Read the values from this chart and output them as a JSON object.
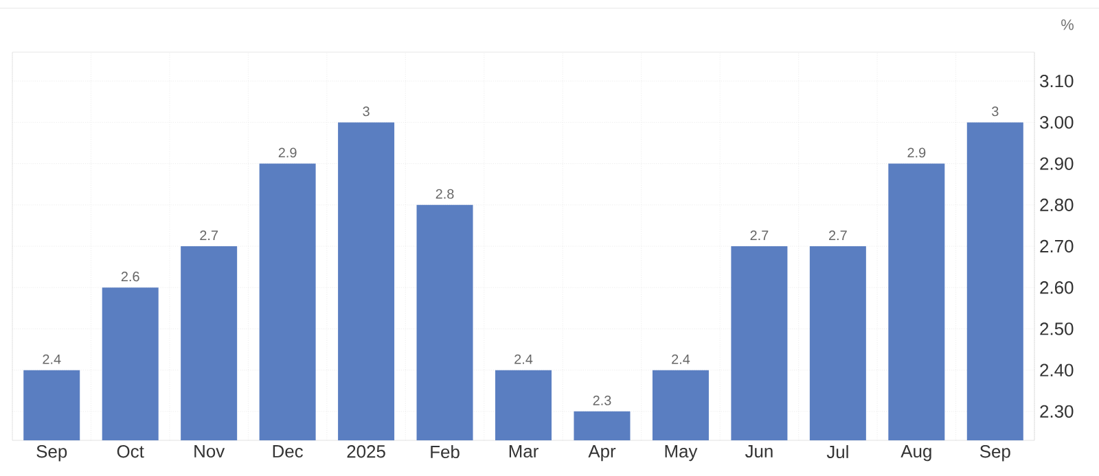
{
  "chart_data": {
    "type": "bar",
    "ylabel": "%",
    "categories": [
      "Sep",
      "Oct",
      "Nov",
      "Dec",
      "2025",
      "Feb",
      "Mar",
      "Apr",
      "May",
      "Jun",
      "Jul",
      "Aug",
      "Sep"
    ],
    "values": [
      2.4,
      2.6,
      2.7,
      2.9,
      3,
      2.8,
      2.4,
      2.3,
      2.4,
      2.7,
      2.7,
      2.9,
      3
    ],
    "color": "#5a7ec1",
    "ylim": [
      2.23,
      3.17
    ],
    "yticks": [
      {
        "value": 2.3,
        "label": "2.30"
      },
      {
        "value": 2.4,
        "label": "2.40"
      },
      {
        "value": 2.5,
        "label": "2.50"
      },
      {
        "value": 2.6,
        "label": "2.60"
      },
      {
        "value": 2.7,
        "label": "2.70"
      },
      {
        "value": 2.8,
        "label": "2.80"
      },
      {
        "value": 2.9,
        "label": "2.90"
      },
      {
        "value": 3.0,
        "label": "3.00"
      },
      {
        "value": 3.1,
        "label": "3.10"
      }
    ],
    "grid": true,
    "data_labels": true
  }
}
